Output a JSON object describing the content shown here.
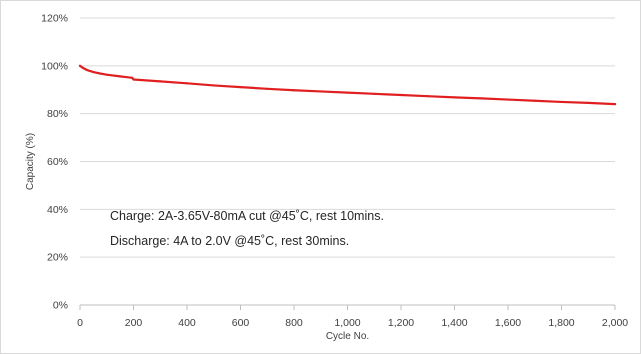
{
  "chart_data": {
    "type": "line",
    "title": "",
    "xlabel": "Cycle No.",
    "ylabel": "Capacity (%)",
    "xlim": [
      0,
      2000
    ],
    "ylim": [
      0,
      120
    ],
    "x_ticks": [
      0,
      200,
      400,
      600,
      800,
      1000,
      1200,
      1400,
      1600,
      1800,
      2000
    ],
    "x_tick_labels": [
      "0",
      "200",
      "400",
      "600",
      "800",
      "1,000",
      "1,200",
      "1,400",
      "1,600",
      "1,800",
      "2,000"
    ],
    "y_ticks": [
      0,
      20,
      40,
      60,
      80,
      100,
      120
    ],
    "y_tick_labels": [
      "0%",
      "20%",
      "40%",
      "60%",
      "80%",
      "100%",
      "120%"
    ],
    "grid": "horizontal",
    "legend": "none",
    "annotations": [
      "Charge: 2A-3.65V-80mA cut @45˚C, rest 10mins.",
      "Discharge: 4A to 2.0V @45˚C, rest 30mins."
    ],
    "series": [
      {
        "color": "#e02020",
        "x": [
          0,
          10,
          25,
          50,
          75,
          100,
          150,
          195,
          200,
          300,
          400,
          500,
          600,
          700,
          800,
          900,
          1000,
          1100,
          1200,
          1300,
          1400,
          1500,
          1600,
          1700,
          1800,
          1900,
          2000
        ],
        "y": [
          100,
          99.2,
          98.3,
          97.4,
          96.8,
          96.3,
          95.6,
          95.0,
          94.3,
          93.5,
          92.7,
          91.8,
          91.1,
          90.4,
          89.8,
          89.3,
          88.8,
          88.3,
          87.8,
          87.3,
          86.8,
          86.4,
          85.9,
          85.4,
          84.9,
          84.5,
          84.0
        ]
      }
    ]
  }
}
